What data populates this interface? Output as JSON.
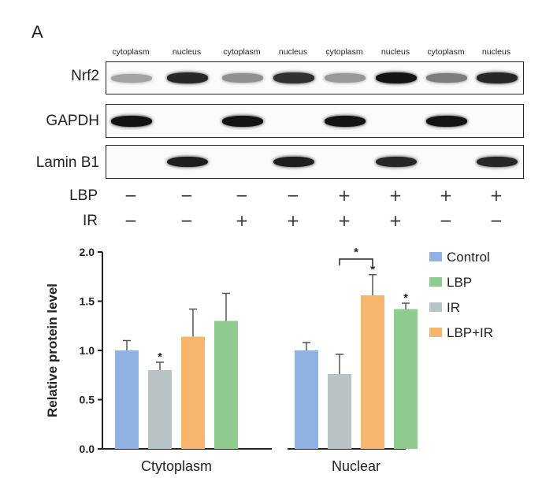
{
  "panel_label": "A",
  "western_blot": {
    "lanes": [
      "cytoplasm",
      "nucleus",
      "cytoplasm",
      "nucleus",
      "cytoplasm",
      "nucleus",
      "cytoplasm",
      "nucleus"
    ],
    "rows": [
      {
        "name": "Nrf2",
        "band_intensity": [
          0.25,
          0.9,
          0.35,
          0.85,
          0.3,
          1.0,
          0.45,
          0.9
        ]
      },
      {
        "name": "GAPDH",
        "band_intensity": [
          1.0,
          0,
          1.0,
          0,
          1.0,
          0,
          1.0,
          0
        ]
      },
      {
        "name": "Lamin B1",
        "band_intensity": [
          0,
          0.95,
          0,
          0.95,
          0,
          0.9,
          0,
          0.9
        ]
      }
    ],
    "treatments": [
      {
        "name": "LBP",
        "values": [
          "−",
          "−",
          "−",
          "−",
          "+",
          "+",
          "+",
          "+"
        ]
      },
      {
        "name": "IR",
        "values": [
          "−",
          "−",
          "+",
          "+",
          "+",
          "+",
          "−",
          "−"
        ]
      }
    ]
  },
  "chart_data": {
    "type": "bar",
    "ylabel": "Relative protein level",
    "ylim": [
      0,
      2.0
    ],
    "yticks": [
      "0.0",
      "0.5",
      "1.0",
      "1.5",
      "2.0"
    ],
    "groups": [
      {
        "name": "Ctytoplasm",
        "bars": [
          {
            "series": "Control",
            "value": 1.0,
            "error": 0.1,
            "sig": ""
          },
          {
            "series": "IR",
            "value": 0.8,
            "error": 0.08,
            "sig": "*"
          },
          {
            "series": "LBP+IR",
            "value": 1.14,
            "error": 0.28,
            "sig": ""
          },
          {
            "series": "LBP",
            "value": 1.3,
            "error": 0.28,
            "sig": ""
          }
        ]
      },
      {
        "name": "Nuclear",
        "bars": [
          {
            "series": "Control",
            "value": 1.0,
            "error": 0.08,
            "sig": ""
          },
          {
            "series": "IR",
            "value": 0.76,
            "error": 0.2,
            "sig": ""
          },
          {
            "series": "LBP+IR",
            "value": 1.56,
            "error": 0.21,
            "sig": "*"
          },
          {
            "series": "LBP",
            "value": 1.42,
            "error": 0.06,
            "sig": "*"
          }
        ]
      }
    ],
    "legend": [
      {
        "name": "Control",
        "color": "#8fb2e3"
      },
      {
        "name": "LBP",
        "color": "#8fcb8f"
      },
      {
        "name": "IR",
        "color": "#b9c2c5"
      },
      {
        "name": "LBP+IR",
        "color": "#f7b56e"
      }
    ],
    "bracket": {
      "text": "*"
    },
    "legend_position": "top-right"
  }
}
